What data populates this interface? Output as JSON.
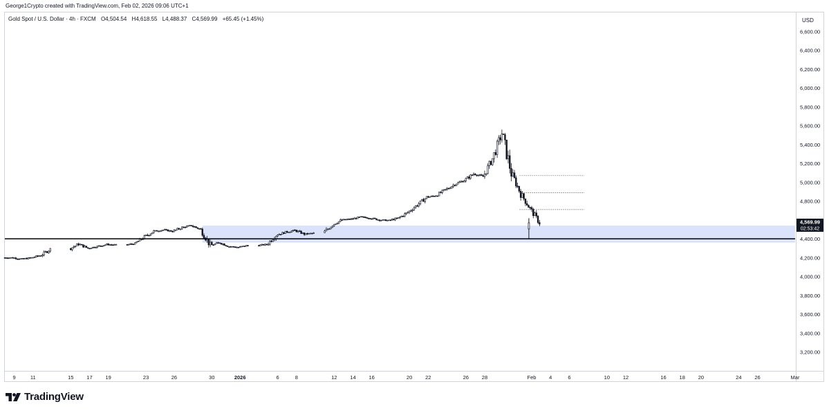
{
  "header": {
    "credit": "George1Crypto created with TradingView.com, Feb 02, 2026 09:06 UTC+1"
  },
  "legend": {
    "symbol": "Gold Spot / U.S. Dollar · 4h · FXCM",
    "open": "O4,504.54",
    "high": "H4,618.55",
    "low": "L4,488.37",
    "close": "C4,569.99",
    "change": "+65.45 (+1.45%)"
  },
  "brand": {
    "name": "TradingView",
    "icon": "tradingview-logo-icon"
  },
  "colors": {
    "zone_fill": "#dbe3fb",
    "line": "#000000",
    "candle": "#131722",
    "price_label_bg": "#131722",
    "grid_border": "#d1d4dc"
  },
  "chart_data": {
    "type": "candlestick",
    "currency": "USD",
    "ylim": [
      3000,
      6800
    ],
    "y_ticks": [
      3200,
      3400,
      3600,
      3800,
      4000,
      4200,
      4400,
      4600,
      4800,
      5000,
      5200,
      5400,
      5600,
      5800,
      6000,
      6200,
      6400,
      6600
    ],
    "y_tick_labels": [
      "3,200.00",
      "3,400.00",
      "3,600.00",
      "3,800.00",
      "4,000.00",
      "4,200.00",
      "4,400.00",
      "4,600.00",
      "4,800.00",
      "5,000.00",
      "5,200.00",
      "5,400.00",
      "5,600.00",
      "5,800.00",
      "6,000.00",
      "6,200.00",
      "6,400.00",
      "6,600.00"
    ],
    "x_axis": {
      "start_date": "2025-12-08",
      "end_date": "2026-03-02",
      "ticks": [
        {
          "date": "2025-12-09",
          "label": "9"
        },
        {
          "date": "2025-12-11",
          "label": "11"
        },
        {
          "date": "2025-12-15",
          "label": "15"
        },
        {
          "date": "2025-12-17",
          "label": "17"
        },
        {
          "date": "2025-12-19",
          "label": "19"
        },
        {
          "date": "2025-12-23",
          "label": "23"
        },
        {
          "date": "2025-12-26",
          "label": "26"
        },
        {
          "date": "2025-12-30",
          "label": "30"
        },
        {
          "date": "2026-01-02",
          "label": "2026",
          "bold": true
        },
        {
          "date": "2026-01-06",
          "label": "6"
        },
        {
          "date": "2026-01-08",
          "label": "8"
        },
        {
          "date": "2026-01-12",
          "label": "12"
        },
        {
          "date": "2026-01-14",
          "label": "14"
        },
        {
          "date": "2026-01-16",
          "label": "16"
        },
        {
          "date": "2026-01-20",
          "label": "20"
        },
        {
          "date": "2026-01-22",
          "label": "22"
        },
        {
          "date": "2026-01-26",
          "label": "26"
        },
        {
          "date": "2026-01-28",
          "label": "28"
        },
        {
          "date": "2026-02-02",
          "label": "Feb"
        },
        {
          "date": "2026-02-04",
          "label": "4"
        },
        {
          "date": "2026-02-06",
          "label": "6"
        },
        {
          "date": "2026-02-10",
          "label": "10"
        },
        {
          "date": "2026-02-12",
          "label": "12"
        },
        {
          "date": "2026-02-16",
          "label": "16"
        },
        {
          "date": "2026-02-18",
          "label": "18"
        },
        {
          "date": "2026-02-20",
          "label": "20"
        },
        {
          "date": "2026-02-24",
          "label": "24"
        },
        {
          "date": "2026-02-26",
          "label": "26"
        },
        {
          "date": "2026-03-02",
          "label": "Mar"
        }
      ]
    },
    "series": [
      {
        "values": [
          {
            "date": "2025-12-08",
            "close": 4200
          },
          {
            "date": "2025-12-09",
            "close": 4185
          },
          {
            "date": "2025-12-10",
            "close": 4200
          },
          {
            "date": "2025-12-11",
            "close": 4225
          },
          {
            "date": "2025-12-12",
            "close": 4290
          },
          {
            "date": "2025-12-15",
            "close": 4345
          },
          {
            "date": "2025-12-16",
            "close": 4300
          },
          {
            "date": "2025-12-17",
            "close": 4320
          },
          {
            "date": "2025-12-18",
            "close": 4340
          },
          {
            "date": "2025-12-19",
            "close": 4335
          },
          {
            "date": "2025-12-21",
            "close": 4350
          },
          {
            "date": "2025-12-22",
            "close": 4420
          },
          {
            "date": "2025-12-23",
            "close": 4480
          },
          {
            "date": "2025-12-24",
            "close": 4495
          },
          {
            "date": "2025-12-25",
            "close": 4480
          },
          {
            "date": "2025-12-26",
            "close": 4520
          },
          {
            "date": "2025-12-27",
            "close": 4540
          },
          {
            "date": "2025-12-28",
            "close": 4500
          },
          {
            "date": "2025-12-29",
            "close": 4330
          },
          {
            "date": "2025-12-30",
            "close": 4360
          },
          {
            "date": "2025-12-31",
            "close": 4320
          },
          {
            "date": "2026-01-01",
            "close": 4310
          },
          {
            "date": "2026-01-02",
            "close": 4330
          },
          {
            "date": "2026-01-04",
            "close": 4340
          },
          {
            "date": "2026-01-05",
            "close": 4440
          },
          {
            "date": "2026-01-06",
            "close": 4470
          },
          {
            "date": "2026-01-07",
            "close": 4490
          },
          {
            "date": "2026-01-08",
            "close": 4450
          },
          {
            "date": "2026-01-09",
            "close": 4460
          },
          {
            "date": "2026-01-11",
            "close": 4550
          },
          {
            "date": "2026-01-12",
            "close": 4600
          },
          {
            "date": "2026-01-13",
            "close": 4610
          },
          {
            "date": "2026-01-14",
            "close": 4630
          },
          {
            "date": "2026-01-15",
            "close": 4620
          },
          {
            "date": "2026-01-16",
            "close": 4600
          },
          {
            "date": "2026-01-17",
            "close": 4595
          },
          {
            "date": "2026-01-18",
            "close": 4620
          },
          {
            "date": "2026-01-19",
            "close": 4680
          },
          {
            "date": "2026-01-20",
            "close": 4760
          },
          {
            "date": "2026-01-21",
            "close": 4840
          },
          {
            "date": "2026-01-22",
            "close": 4860
          },
          {
            "date": "2026-01-23",
            "close": 4920
          },
          {
            "date": "2026-01-24",
            "close": 4980
          },
          {
            "date": "2026-01-25",
            "close": 5020
          },
          {
            "date": "2026-01-26",
            "close": 5090
          },
          {
            "date": "2026-01-27",
            "close": 5060
          },
          {
            "date": "2026-01-28",
            "close": 5250
          },
          {
            "date": "2026-01-29",
            "close": 5520
          },
          {
            "date": "2026-01-30",
            "close": 5100
          },
          {
            "date": "2026-01-31",
            "close": 4880
          },
          {
            "date": "2026-02-01",
            "close": 4720
          },
          {
            "date": "2026-02-02",
            "close": 4569.99
          }
        ]
      }
    ],
    "horizontal_line": 4400,
    "support_zone": [
      4360,
      4540
    ],
    "dotted_levels": [
      {
        "value": 5070,
        "start": "2026-02-01",
        "end": "2026-02-07"
      },
      {
        "value": 4890,
        "start": "2026-02-01",
        "end": "2026-02-07"
      },
      {
        "value": 4710,
        "start": "2026-02-01",
        "end": "2026-02-07"
      }
    ],
    "last_price_label": "4,569.99",
    "countdown_label": "02:53:42",
    "last_price": 4569.99
  }
}
